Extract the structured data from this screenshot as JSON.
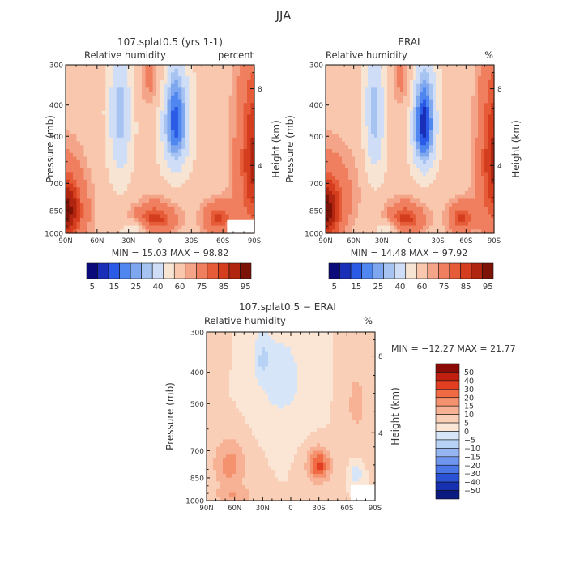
{
  "figure_title": "JJA",
  "chart_data": [
    {
      "type": "heatmap",
      "title": "107.splat0.5 (yrs 1-1)",
      "subtitle_left": "Relative humidity",
      "subtitle_right": "percent",
      "xlabel": "",
      "ylabel": "Pressure (mb)",
      "y2label": "Height (km)",
      "x_ticks": [
        "90N",
        "60N",
        "30N",
        "0",
        "30S",
        "60S",
        "90S"
      ],
      "y_ticks": [
        "300",
        "400",
        "500",
        "700",
        "850",
        "1000"
      ],
      "y2_ticks": [
        "8",
        "4"
      ],
      "xlim": [
        90,
        -90
      ],
      "ylim": [
        1000,
        300
      ],
      "stats": "MIN =  15.03   MAX =  98.82",
      "min": 15.03,
      "max": 98.82,
      "colorbar": {
        "orientation": "horizontal",
        "labels": [
          "5",
          "15",
          "25",
          "40",
          "60",
          "75",
          "85",
          "95"
        ],
        "colors": [
          "#0a0a7a",
          "#1a2fb8",
          "#2b5be6",
          "#4f86f0",
          "#7ea7f0",
          "#a7c3f2",
          "#cfdef6",
          "#f7e4d2",
          "#f8c7ad",
          "#f4a488",
          "#ef7f5e",
          "#e65b38",
          "#d43d1e",
          "#b02510",
          "#7d1206"
        ]
      }
    },
    {
      "type": "heatmap",
      "title": "ERAI",
      "subtitle_left": "Relative humidity",
      "subtitle_right": "%",
      "xlabel": "",
      "ylabel": "Pressure (mb)",
      "y2label": "Height (km)",
      "x_ticks": [
        "90N",
        "60N",
        "30N",
        "0",
        "30S",
        "60S",
        "90S"
      ],
      "y_ticks": [
        "300",
        "400",
        "500",
        "700",
        "850",
        "1000"
      ],
      "y2_ticks": [
        "8",
        "4"
      ],
      "xlim": [
        90,
        -90
      ],
      "ylim": [
        1000,
        300
      ],
      "stats": "MIN =  14.48   MAX =  97.92",
      "min": 14.48,
      "max": 97.92,
      "colorbar": {
        "orientation": "horizontal",
        "labels": [
          "5",
          "15",
          "25",
          "40",
          "60",
          "75",
          "85",
          "95"
        ],
        "colors": [
          "#0a0a7a",
          "#1a2fb8",
          "#2b5be6",
          "#4f86f0",
          "#7ea7f0",
          "#a7c3f2",
          "#cfdef6",
          "#f7e4d2",
          "#f8c7ad",
          "#f4a488",
          "#ef7f5e",
          "#e65b38",
          "#d43d1e",
          "#b02510",
          "#7d1206"
        ]
      }
    },
    {
      "type": "heatmap",
      "title": "107.splat0.5 − ERAI",
      "subtitle_left": "Relative humidity",
      "subtitle_right": "%",
      "xlabel": "",
      "ylabel": "Pressure (mb)",
      "y2label": "Height (km)",
      "x_ticks": [
        "90N",
        "60N",
        "30N",
        "0",
        "30S",
        "60S",
        "90S"
      ],
      "y_ticks": [
        "300",
        "400",
        "500",
        "700",
        "850",
        "1000"
      ],
      "y2_ticks": [
        "8",
        "4"
      ],
      "xlim": [
        90,
        -90
      ],
      "ylim": [
        1000,
        300
      ],
      "stats": "MIN = −12.27   MAX =  21.77",
      "min": -12.27,
      "max": 21.77,
      "colorbar": {
        "orientation": "vertical",
        "labels": [
          "50",
          "40",
          "30",
          "20",
          "15",
          "10",
          "5",
          "0",
          "−5",
          "−10",
          "−15",
          "−20",
          "−30",
          "−40",
          "−50"
        ],
        "colors": [
          "#8a0a06",
          "#c0200f",
          "#e23e22",
          "#f06a44",
          "#f4916e",
          "#f7b296",
          "#f9cfb8",
          "#fbe6d6",
          "#d6e6f8",
          "#b8d2f6",
          "#96b6f2",
          "#6f96ee",
          "#4a76e8",
          "#2a52d4",
          "#1530b0",
          "#0a1a80"
        ]
      }
    }
  ]
}
